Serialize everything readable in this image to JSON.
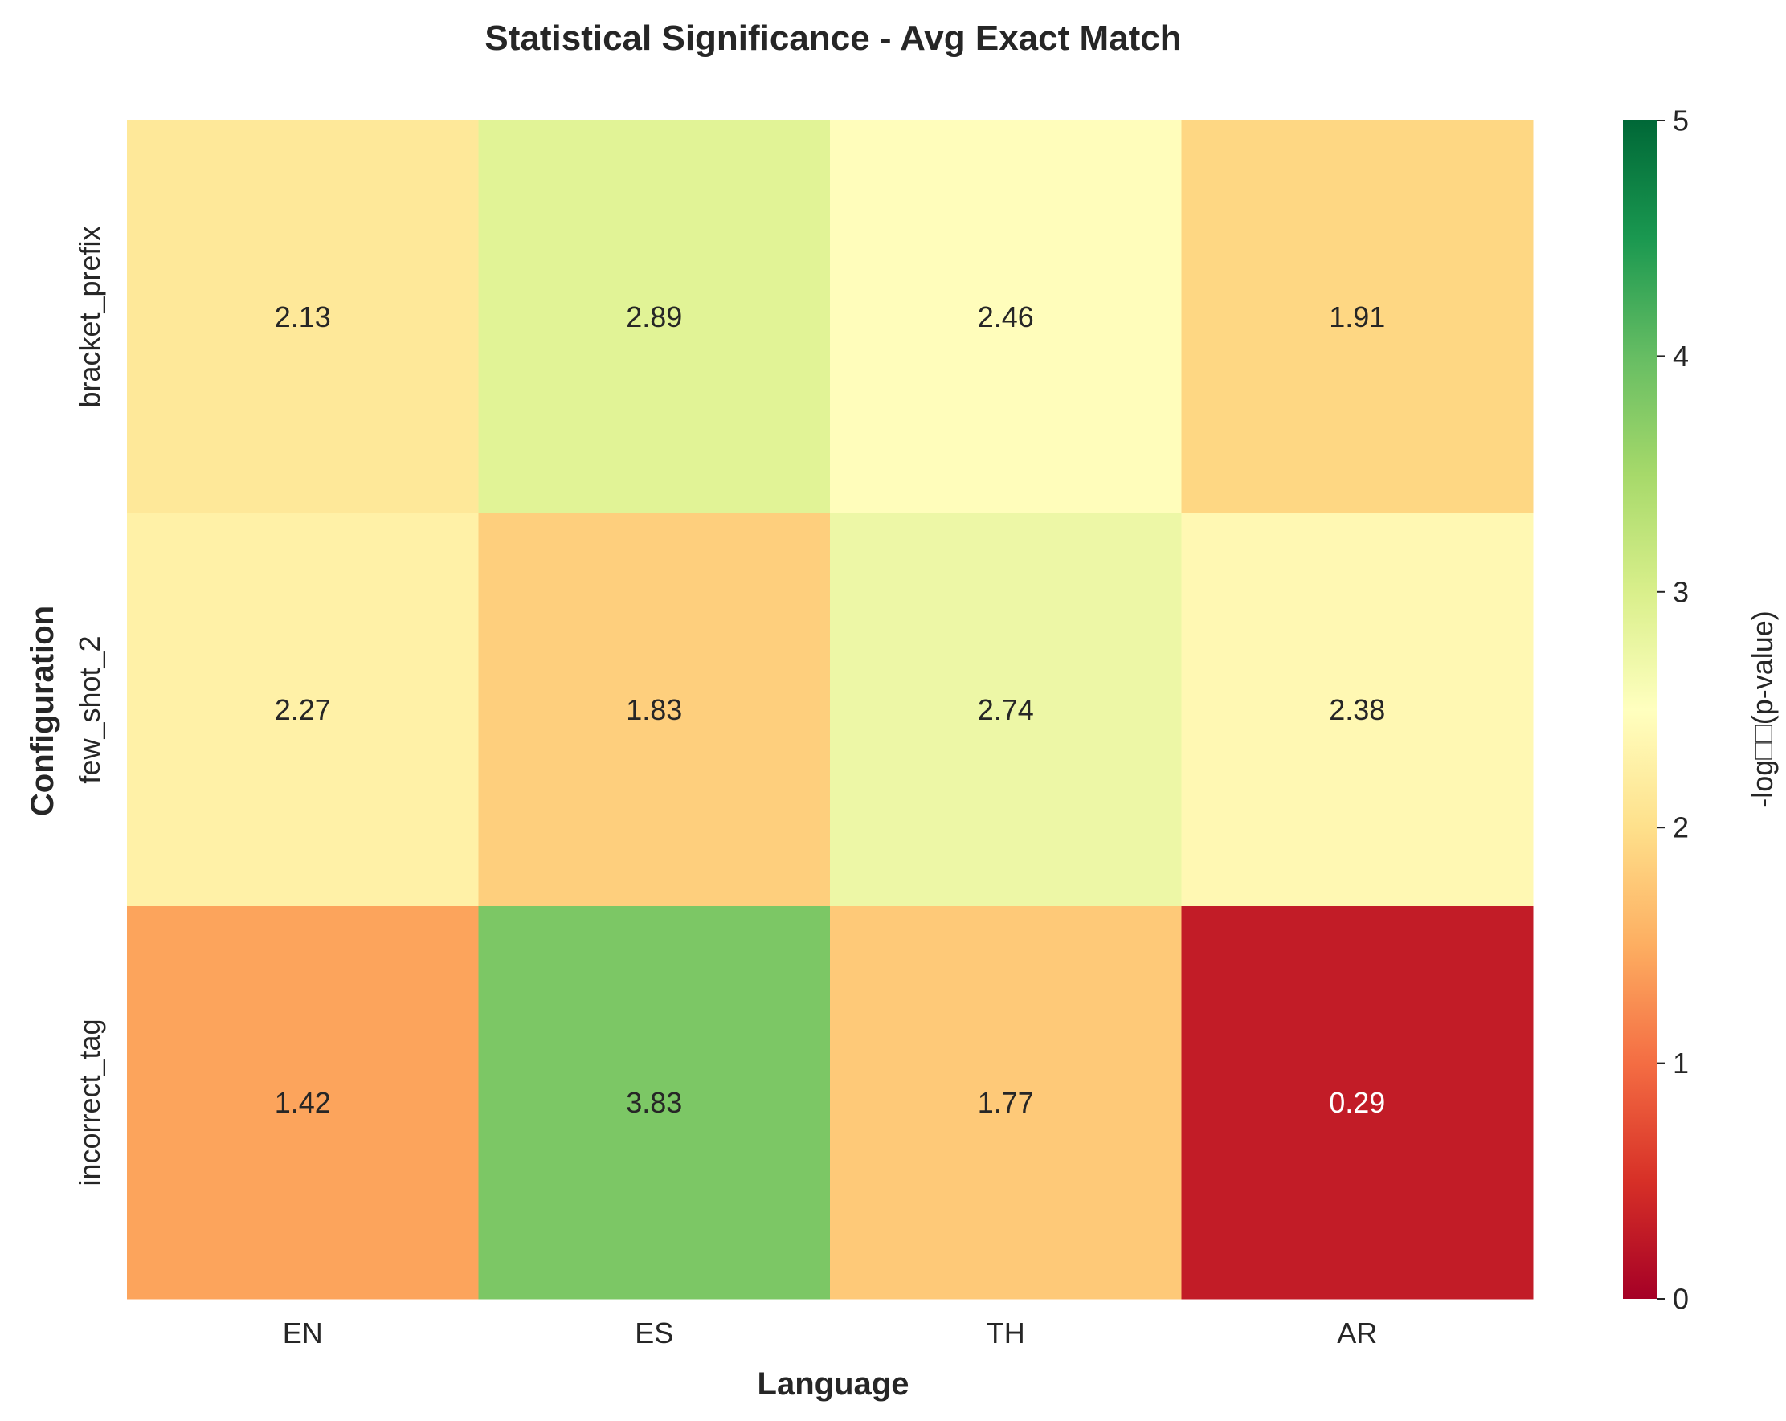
{
  "chart_data": {
    "type": "heatmap",
    "title": "Statistical Significance - Avg Exact Match",
    "xlabel": "Language",
    "ylabel": "Configuration",
    "x_categories": [
      "EN",
      "ES",
      "TH",
      "AR"
    ],
    "y_categories": [
      "bracket_prefix",
      "few_shot_2",
      "incorrect_tag"
    ],
    "values": [
      [
        2.13,
        2.89,
        2.46,
        1.91
      ],
      [
        2.27,
        1.83,
        2.74,
        2.38
      ],
      [
        1.42,
        3.83,
        1.77,
        0.29
      ]
    ],
    "value_labels": [
      [
        "2.13",
        "2.89",
        "2.46",
        "1.91"
      ],
      [
        "2.27",
        "1.83",
        "2.74",
        "2.38"
      ],
      [
        "1.42",
        "3.83",
        "1.77",
        "0.29"
      ]
    ],
    "colorbar": {
      "label": "-log□□(p-value)",
      "range": [
        0,
        5
      ],
      "ticks": [
        "0",
        "1",
        "2",
        "3",
        "4",
        "5"
      ],
      "colormap": "RdYlGn",
      "colormap_stops": [
        "#a50026",
        "#d73027",
        "#f46d43",
        "#fdae61",
        "#fee08b",
        "#ffffbf",
        "#d9ef8b",
        "#a6d96a",
        "#66bd63",
        "#1a9850",
        "#006837"
      ]
    },
    "grid": false
  }
}
